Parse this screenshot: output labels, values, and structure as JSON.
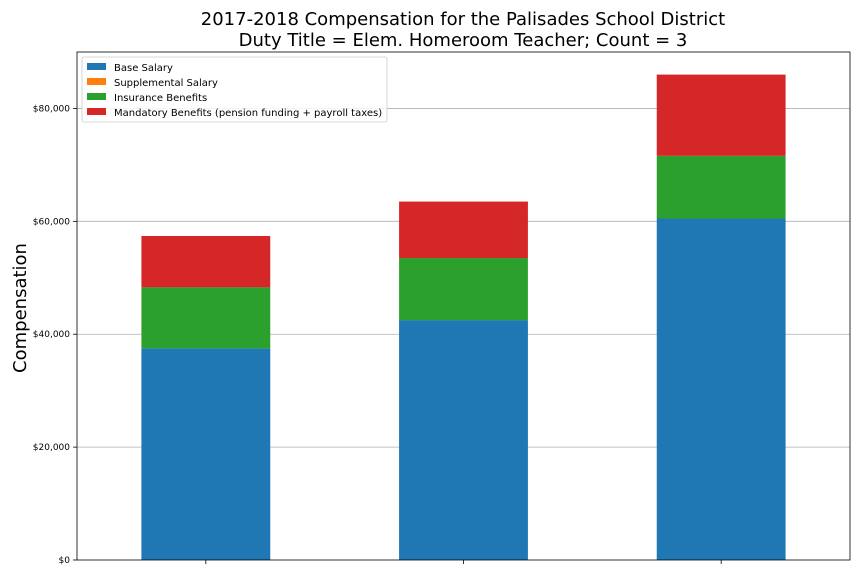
{
  "chart_data": {
    "type": "bar",
    "stacked": true,
    "title": "2017-2018 Compensation for the Palisades School District",
    "subtitle": "Duty Title = Elem. Homeroom Teacher; Count = 3",
    "xlabel": "",
    "ylabel": "Compensation",
    "ylim": [
      0,
      90000
    ],
    "yticks": [
      0,
      20000,
      40000,
      60000,
      80000
    ],
    "ytick_labels": [
      "$0",
      "$20,000",
      "$40,000",
      "$60,000",
      "$80,000"
    ],
    "grid": "horizontal",
    "legend_position": "top-left",
    "categories": [
      "",
      "",
      ""
    ],
    "series": [
      {
        "name": "Base Salary",
        "color": "#1f77b4",
        "values": [
          37500,
          42500,
          60500
        ]
      },
      {
        "name": "Supplemental Salary",
        "color": "#ff7f0e",
        "values": [
          0,
          0,
          0
        ]
      },
      {
        "name": "Insurance Benefits",
        "color": "#2ca02c",
        "values": [
          10800,
          11000,
          11100
        ]
      },
      {
        "name": "Mandatory Benefits (pension funding + payroll taxes)",
        "color": "#d62728",
        "values": [
          9100,
          10000,
          14400
        ]
      }
    ]
  }
}
